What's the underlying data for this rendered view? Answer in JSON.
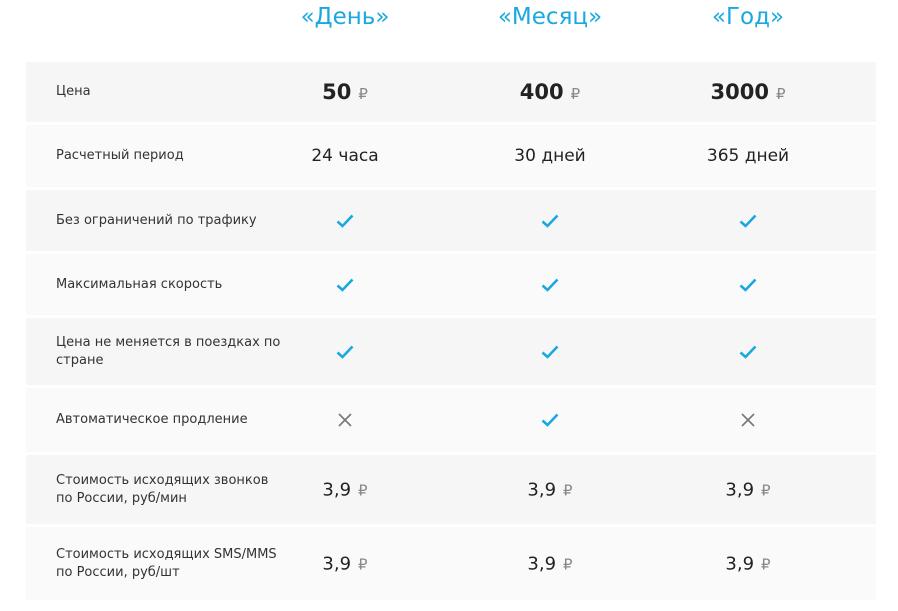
{
  "plans": [
    "«День»",
    "«Месяц»",
    "«Год»"
  ],
  "currency_symbol": "₽",
  "accent_color": "#1aa8e0",
  "rows": [
    {
      "label": "Цена",
      "type": "price",
      "values": [
        "50",
        "400",
        "3000"
      ]
    },
    {
      "label": "Расчетный период",
      "type": "text",
      "values": [
        "24 часа",
        "30 дней",
        "365 дней"
      ]
    },
    {
      "label": "Без ограничений по трафику",
      "type": "bool",
      "values": [
        true,
        true,
        true
      ]
    },
    {
      "label": "Максимальная скорость",
      "type": "bool",
      "values": [
        true,
        true,
        true
      ]
    },
    {
      "label": "Цена не меняется в поездках по стране",
      "type": "bool",
      "values": [
        true,
        true,
        true
      ]
    },
    {
      "label": "Автоматическое продление",
      "type": "bool",
      "values": [
        false,
        true,
        false
      ]
    },
    {
      "label": "Стоимость исходящих звонков по России, руб/мин",
      "type": "money",
      "values": [
        "3,9",
        "3,9",
        "3,9"
      ]
    },
    {
      "label": "Стоимость исходящих SMS/MMS по России, руб/шт",
      "type": "money",
      "values": [
        "3,9",
        "3,9",
        "3,9"
      ]
    }
  ]
}
